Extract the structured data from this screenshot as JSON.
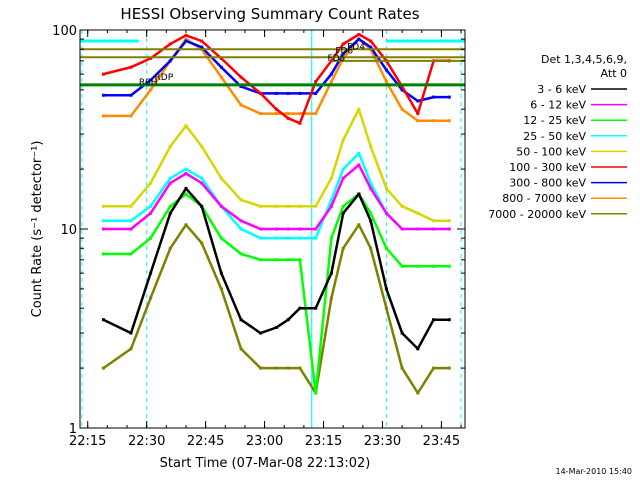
{
  "chart_data": {
    "type": "line",
    "title": "HESSI Observing Summary Count Rates",
    "xlabel": "Start Time (07-Mar-08 22:13:02)",
    "ylabel": "Count Rate (s⁻¹ detector⁻¹)",
    "y_scale": "log",
    "ylim": [
      1,
      100
    ],
    "xlim": [
      "22:13:02",
      "23:51:00"
    ],
    "x_ticks": [
      "22:15",
      "22:30",
      "22:45",
      "23:00",
      "23:15",
      "23:30",
      "23:45"
    ],
    "y_ticks": [
      "1",
      "10",
      "100"
    ],
    "legend_title": "Det 1,3,4,5,6,9,\nAtt 0",
    "legend_title_lines": [
      "Det 1,3,4,5,6,9,",
      "Att 0"
    ],
    "legend_position": "right",
    "timestamp": "14-Mar-2010 15:40",
    "series": [
      {
        "name": "3 - 6 keV",
        "color": "#000000",
        "x": [
          "22:19",
          "22:26",
          "22:31",
          "22:36",
          "22:40",
          "22:44",
          "22:49",
          "22:54",
          "22:59",
          "23:03",
          "23:06",
          "23:09",
          "23:13",
          "23:17",
          "23:20",
          "23:24",
          "23:27",
          "23:31",
          "23:35",
          "23:39",
          "23:43",
          "23:47"
        ],
        "values": [
          3.5,
          3.0,
          6.0,
          12.0,
          16.0,
          13.0,
          6.0,
          3.5,
          3.0,
          3.2,
          3.5,
          4.0,
          4.0,
          6.0,
          12.0,
          15.0,
          11.0,
          5.0,
          3.0,
          2.5,
          3.5,
          3.5
        ]
      },
      {
        "name": "6 - 12 keV",
        "color": "#ff00ff",
        "x": [
          "22:19",
          "22:26",
          "22:31",
          "22:36",
          "22:40",
          "22:44",
          "22:49",
          "22:54",
          "22:59",
          "23:03",
          "23:06",
          "23:09",
          "23:13",
          "23:17",
          "23:20",
          "23:24",
          "23:27",
          "23:31",
          "23:35",
          "23:39",
          "23:43",
          "23:47"
        ],
        "values": [
          10.0,
          10.0,
          12.0,
          17.0,
          19.0,
          17.0,
          13.0,
          11.0,
          10.0,
          10.0,
          10.0,
          10.0,
          10.0,
          13.0,
          18.0,
          21.0,
          16.0,
          12.0,
          10.0,
          10.0,
          10.0,
          10.0
        ]
      },
      {
        "name": "12 - 25 keV",
        "color": "#00ff00",
        "x": [
          "22:19",
          "22:26",
          "22:31",
          "22:36",
          "22:40",
          "22:44",
          "22:49",
          "22:54",
          "22:59",
          "23:03",
          "23:06",
          "23:09",
          "23:13",
          "23:17",
          "23:20",
          "23:24",
          "23:27",
          "23:31",
          "23:35",
          "23:39",
          "23:43",
          "23:47"
        ],
        "values": [
          7.5,
          7.5,
          9.0,
          13.0,
          15.0,
          13.0,
          9.0,
          7.5,
          7.0,
          7.0,
          7.0,
          7.0,
          1.5,
          9.0,
          13.0,
          15.0,
          12.0,
          8.0,
          6.5,
          6.5,
          6.5,
          6.5
        ]
      },
      {
        "name": "25 - 50 keV",
        "color": "#00ffff",
        "x": [
          "22:19",
          "22:26",
          "22:31",
          "22:36",
          "22:40",
          "22:44",
          "22:49",
          "22:54",
          "22:59",
          "23:03",
          "23:06",
          "23:09",
          "23:13",
          "23:17",
          "23:20",
          "23:24",
          "23:27",
          "23:31",
          "23:35",
          "23:39",
          "23:43",
          "23:47"
        ],
        "values": [
          11.0,
          11.0,
          13.0,
          18.0,
          20.0,
          18.0,
          13.0,
          10.0,
          9.0,
          9.0,
          9.0,
          9.0,
          9.0,
          14.0,
          20.0,
          24.0,
          17.0,
          12.0,
          10.0,
          10.0,
          10.0,
          10.0
        ]
      },
      {
        "name": "50 - 100 keV",
        "color": "#d7d700",
        "x": [
          "22:19",
          "22:26",
          "22:31",
          "22:36",
          "22:40",
          "22:44",
          "22:49",
          "22:54",
          "22:59",
          "23:03",
          "23:06",
          "23:09",
          "23:13",
          "23:17",
          "23:20",
          "23:24",
          "23:27",
          "23:31",
          "23:35",
          "23:39",
          "23:43",
          "23:47"
        ],
        "values": [
          13.0,
          13.0,
          17.0,
          26.0,
          33.0,
          26.0,
          18.0,
          14.0,
          13.0,
          13.0,
          13.0,
          13.0,
          13.0,
          18.0,
          28.0,
          40.0,
          26.0,
          16.0,
          13.0,
          12.0,
          11.0,
          11.0
        ]
      },
      {
        "name": "100 - 300 keV",
        "color": "#ff0000",
        "x": [
          "22:19",
          "22:26",
          "22:31",
          "22:36",
          "22:40",
          "22:44",
          "22:49",
          "22:54",
          "22:59",
          "23:03",
          "23:06",
          "23:09",
          "23:13",
          "23:17",
          "23:20",
          "23:24",
          "23:27",
          "23:31",
          "23:35",
          "23:39",
          "23:43",
          "23:47"
        ],
        "values": [
          60,
          65,
          72,
          85,
          94,
          88,
          72,
          58,
          48,
          40,
          36,
          34,
          55,
          70,
          85,
          95,
          88,
          70,
          52,
          38,
          70,
          70
        ]
      },
      {
        "name": "300 - 800 keV",
        "color": "#0000ff",
        "x": [
          "22:19",
          "22:26",
          "22:31",
          "22:36",
          "22:40",
          "22:44",
          "22:49",
          "22:54",
          "22:59",
          "23:03",
          "23:06",
          "23:09",
          "23:13",
          "23:17",
          "23:20",
          "23:24",
          "23:27",
          "23:31",
          "23:35",
          "23:39",
          "23:43",
          "23:47"
        ],
        "values": [
          47,
          47,
          56,
          70,
          88,
          82,
          65,
          52,
          48,
          48,
          48,
          48,
          48,
          60,
          76,
          90,
          82,
          63,
          50,
          44,
          46,
          46
        ]
      },
      {
        "name": "800 - 7000 keV",
        "color": "#ff8c00",
        "x": [
          "22:19",
          "22:26",
          "22:31",
          "22:36",
          "22:40",
          "22:44",
          "22:49",
          "22:54",
          "22:59",
          "23:03",
          "23:06",
          "23:09",
          "23:13",
          "23:17",
          "23:20",
          "23:24",
          "23:27",
          "23:31",
          "23:35",
          "23:39",
          "23:43",
          "23:47"
        ],
        "values": [
          37,
          37,
          50,
          70,
          90,
          80,
          58,
          42,
          38,
          38,
          38,
          38,
          38,
          55,
          72,
          90,
          80,
          55,
          40,
          35,
          35,
          35
        ]
      },
      {
        "name": "7000 - 20000 keV",
        "color": "#808000",
        "x": [
          "22:19",
          "22:26",
          "22:31",
          "22:36",
          "22:40",
          "22:44",
          "22:49",
          "22:54",
          "22:59",
          "23:03",
          "23:06",
          "23:09",
          "23:13",
          "23:17",
          "23:20",
          "23:24",
          "23:27",
          "23:31",
          "23:35",
          "23:39",
          "23:43",
          "23:47"
        ],
        "values": [
          2.0,
          2.5,
          4.5,
          8.0,
          10.5,
          8.5,
          5.0,
          2.5,
          2.0,
          2.0,
          2.0,
          2.0,
          1.5,
          4.5,
          8.0,
          10.5,
          8.0,
          4.0,
          2.0,
          1.5,
          2.0,
          2.0
        ]
      }
    ],
    "annotations": {
      "flag_labels": [
        {
          "text": "FD4",
          "x": "23:21",
          "y": 80
        },
        {
          "text": "FD6",
          "x": "23:18",
          "y": 76
        },
        {
          "text": "FD5",
          "x": "23:16",
          "y": 70
        },
        {
          "text": "RDP",
          "x": "22:32",
          "y": 56
        },
        {
          "text": "R0H",
          "x": "22:28",
          "y": 53
        }
      ],
      "flag_bars": [
        {
          "color": "#00ffff",
          "y": 88,
          "x_start": "22:13:02",
          "x_end": "22:28",
          "thick": true
        },
        {
          "color": "#00ffff",
          "y": 88,
          "x_start": "23:31",
          "x_end": "23:51",
          "thick": true
        },
        {
          "color": "#808000",
          "y": 80,
          "x_start": "22:13:02",
          "x_end": "23:51",
          "thick": false
        },
        {
          "color": "#808000",
          "y": 73,
          "x_start": "22:13:02",
          "x_end": "23:51",
          "thick": false
        },
        {
          "color": "#808000",
          "y": 70,
          "x_start": "23:17",
          "x_end": "23:51",
          "thick": false
        },
        {
          "color": "#008000",
          "y": 53,
          "x_start": "22:13:02",
          "x_end": "23:51",
          "thick": true
        }
      ],
      "vlines_dashed": [
        "22:13:30",
        "22:30",
        "23:12",
        "23:31",
        "23:50"
      ],
      "vlines_solid": [
        "23:12"
      ]
    }
  }
}
